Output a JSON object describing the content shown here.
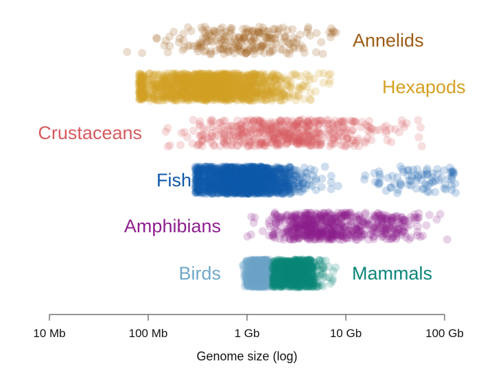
{
  "chart_data": {
    "type": "scatter",
    "subtype": "jittered strip plot",
    "title": "",
    "xlabel": "Genome size (log)",
    "ylabel": "",
    "x_scale": "log10",
    "x_unit": "bases",
    "xlim": [
      10000000,
      100000000000
    ],
    "x_ticks": [
      {
        "value": 10000000,
        "label": "10 Mb"
      },
      {
        "value": 100000000,
        "label": "100 Mb"
      },
      {
        "value": 1000000000,
        "label": "1 Gb"
      },
      {
        "value": 10000000000,
        "label": "10 Gb"
      },
      {
        "value": 100000000000,
        "label": "100 Gb"
      }
    ],
    "grid": false,
    "legend": "none (direct labels beside each group)",
    "groups": [
      {
        "name": "Annelids",
        "color": "#9C5B16",
        "label_side": "right",
        "row": 1,
        "approx_count": 220,
        "median": 1000000000,
        "range": [
          60000000,
          8000000000
        ],
        "clusters": [
          {
            "center": 1000000000,
            "weight": 1.0
          }
        ]
      },
      {
        "name": "Hexapods",
        "color": "#D4A021",
        "label_side": "right",
        "row": 2,
        "approx_count": 1400,
        "median": 400000000,
        "range": [
          80000000,
          15000000000
        ],
        "clusters": [
          {
            "center": 400000000,
            "weight": 1.0
          }
        ]
      },
      {
        "name": "Crustaceans",
        "color": "#D65A5E",
        "label_side": "left",
        "row": 3,
        "approx_count": 500,
        "median": 2500000000,
        "range": [
          150000000,
          60000000000
        ],
        "clusters": [
          {
            "center": 2500000000,
            "weight": 1.0
          }
        ]
      },
      {
        "name": "Fish",
        "color": "#0E58A8",
        "label_side": "left",
        "row": 4,
        "approx_count": 1700,
        "median": 1000000000,
        "range": [
          300000000,
          130000000000
        ],
        "clusters": [
          {
            "center": 900000000,
            "weight": 0.96
          },
          {
            "center": 60000000000,
            "weight": 0.04
          }
        ]
      },
      {
        "name": "Amphibians",
        "color": "#8E1F8E",
        "label_side": "left",
        "row": 5,
        "approx_count": 650,
        "median": 5000000000,
        "range": [
          1000000000,
          120000000000
        ],
        "clusters": [
          {
            "center": 5000000000,
            "weight": 0.7
          },
          {
            "center": 25000000000,
            "weight": 0.3
          }
        ]
      },
      {
        "name": "Birds",
        "color": "#6FA7C9",
        "label_side": "left",
        "row": 6,
        "approx_count": 900,
        "median": 1300000000,
        "range": [
          900000000,
          2000000000
        ],
        "clusters": [
          {
            "center": 1300000000,
            "weight": 1.0
          }
        ]
      },
      {
        "name": "Mammals",
        "color": "#0C8579",
        "label_side": "right",
        "row": 6,
        "approx_count": 900,
        "median": 3000000000,
        "range": [
          1800000000,
          8000000000
        ],
        "clusters": [
          {
            "center": 3000000000,
            "weight": 1.0
          }
        ]
      }
    ]
  }
}
